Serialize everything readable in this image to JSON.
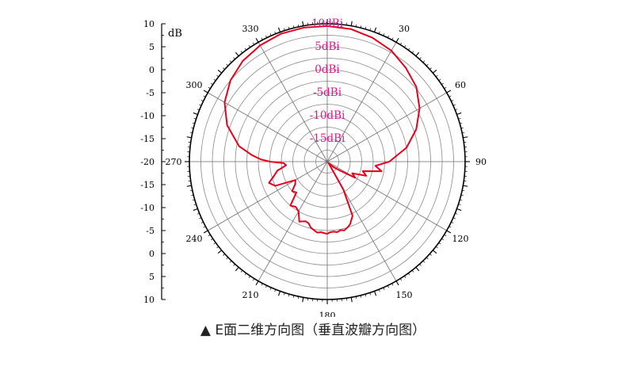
{
  "caption": "▲ E面二维方向图（垂直波瓣方向图）",
  "chart_data": {
    "type": "polar-line",
    "unit_label": "dB",
    "rings": [
      {
        "value": 10,
        "label": "10dBi"
      },
      {
        "value": 5,
        "label": "5dBi"
      },
      {
        "value": 0,
        "label": "0dBi"
      },
      {
        "value": -5,
        "label": "-5dBi"
      },
      {
        "value": -10,
        "label": "-10dBi"
      },
      {
        "value": -15,
        "label": "-15dBi"
      }
    ],
    "r_range": [
      -20,
      10
    ],
    "angle_labels": [
      "0",
      "30",
      "60",
      "90",
      "120",
      "150",
      "180",
      "210",
      "240",
      "270",
      "300",
      "330"
    ],
    "angle_label_visible": [
      false,
      true,
      true,
      true,
      true,
      true,
      true,
      true,
      true,
      true,
      true,
      true
    ],
    "radial_axis_ticks": [
      "10",
      "5",
      "0",
      "-5",
      "-10",
      "-15",
      "-20",
      "-15",
      "-10",
      "-5",
      "0",
      "5",
      "10"
    ],
    "line_color": "#e8001c",
    "ring_label_color": "#e0148a",
    "series": [
      {
        "angles": [
          0,
          10,
          20,
          30,
          40,
          50,
          60,
          70,
          80,
          90,
          95,
          100,
          105,
          110,
          115,
          120,
          125,
          130,
          135,
          140,
          145,
          150,
          155,
          160,
          163,
          166,
          169,
          172,
          175,
          178,
          180,
          182,
          185,
          188,
          191,
          194,
          197,
          200,
          205,
          210,
          215,
          220,
          225,
          230,
          235,
          240,
          245,
          250,
          255,
          260,
          262,
          265,
          268,
          270,
          272,
          275,
          280,
          290,
          300,
          310,
          320,
          330,
          340,
          350,
          360
        ],
        "values": [
          9.5,
          9.3,
          8.7,
          7.9,
          6.6,
          5.3,
          3.2,
          0.6,
          -2.5,
          -6.5,
          -9.5,
          -8.0,
          -12.0,
          -11.0,
          -14.0,
          -13.0,
          -16.5,
          -18.0,
          -19.0,
          -19.5,
          -19.0,
          -13.0,
          -7.0,
          -5.5,
          -5.0,
          -4.6,
          -4.8,
          -4.5,
          -4.7,
          -4.6,
          -4.3,
          -4.4,
          -4.6,
          -4.4,
          -4.8,
          -5.2,
          -6.0,
          -6.2,
          -5.6,
          -7.5,
          -8.0,
          -7.5,
          -10.5,
          -10.0,
          -11.5,
          -12.0,
          -7.5,
          -6.5,
          -8.0,
          -9.0,
          -10.0,
          -11.0,
          -10.5,
          -7.5,
          -5.5,
          -3.5,
          -0.5,
          3.2,
          5.8,
          7.5,
          8.6,
          9.2,
          9.6,
          9.6,
          9.5
        ]
      }
    ]
  }
}
